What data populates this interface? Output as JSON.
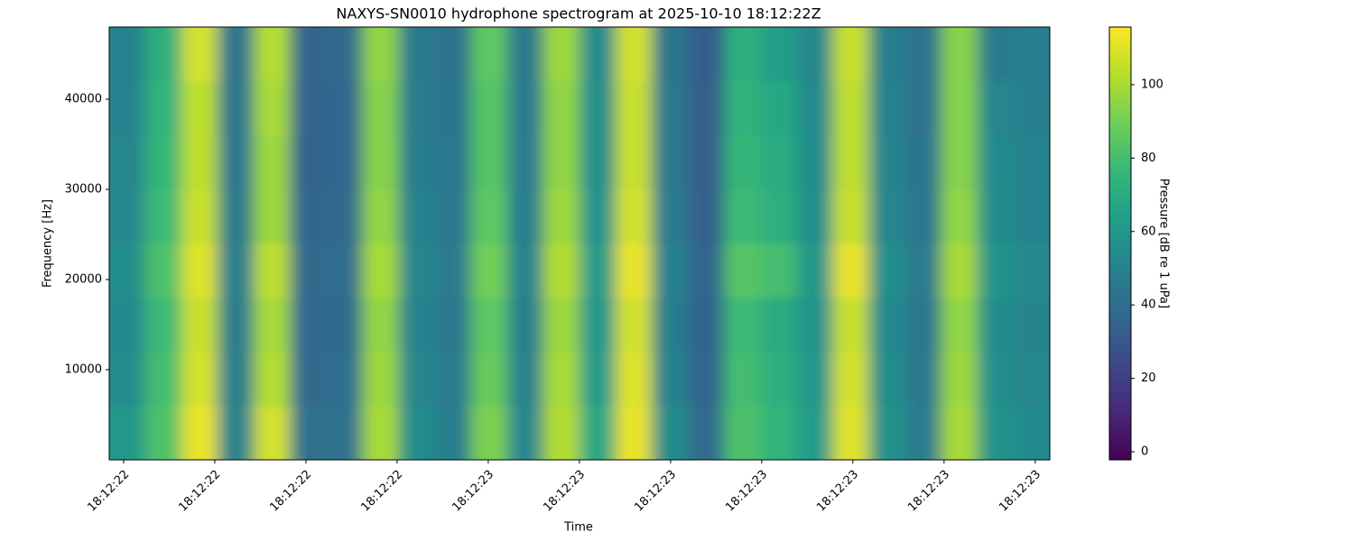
{
  "chart_data": {
    "type": "heatmap",
    "title": "NAXYS-SN0010 hydrophone spectrogram at 2025-10-10 18:12:22Z",
    "x_label": "Time",
    "y_label": "Frequency [Hz]",
    "colorbar_label": "Pressure [dB re 1 uPa]",
    "colormap": "viridis",
    "xlim": [
      -0.158,
      10.16
    ],
    "xticks": [
      {
        "value": 0,
        "label": "18:12:22"
      },
      {
        "value": 1,
        "label": "18:12:22"
      },
      {
        "value": 2,
        "label": "18:12:22"
      },
      {
        "value": 3,
        "label": "18:12:22"
      },
      {
        "value": 4,
        "label": "18:12:23"
      },
      {
        "value": 5,
        "label": "18:12:23"
      },
      {
        "value": 6,
        "label": "18:12:23"
      },
      {
        "value": 7,
        "label": "18:12:23"
      },
      {
        "value": 8,
        "label": "18:12:23"
      },
      {
        "value": 9,
        "label": "18:12:23"
      },
      {
        "value": 10,
        "label": "18:12:23"
      }
    ],
    "ylim": [
      0,
      48000
    ],
    "yticks": [
      10000,
      20000,
      30000,
      40000
    ],
    "clim": [
      -2.2,
      115.7
    ],
    "cticks": [
      0,
      20,
      40,
      60,
      80,
      100
    ],
    "z": [
      [
        60,
        82,
        112,
        50,
        108,
        42,
        42,
        100,
        55,
        48,
        92,
        52,
        102,
        68,
        112,
        55,
        38,
        82,
        75,
        62,
        110,
        58,
        47,
        100,
        58,
        54
      ],
      [
        55,
        80,
        108,
        48,
        102,
        38,
        40,
        98,
        52,
        46,
        88,
        50,
        100,
        62,
        110,
        50,
        36,
        80,
        72,
        60,
        108,
        55,
        45,
        98,
        56,
        52
      ],
      [
        54,
        78,
        106,
        47,
        100,
        37,
        39,
        96,
        50,
        45,
        86,
        49,
        98,
        60,
        108,
        48,
        35,
        78,
        70,
        58,
        106,
        54,
        44,
        96,
        55,
        51
      ],
      [
        56,
        82,
        110,
        48,
        104,
        38,
        40,
        100,
        52,
        46,
        90,
        50,
        102,
        62,
        112,
        50,
        36,
        84,
        80,
        60,
        112,
        56,
        46,
        100,
        58,
        53
      ],
      [
        53,
        78,
        106,
        46,
        98,
        36,
        38,
        96,
        50,
        44,
        86,
        48,
        98,
        58,
        108,
        46,
        34,
        78,
        72,
        56,
        106,
        52,
        44,
        96,
        55,
        50
      ],
      [
        52,
        76,
        104,
        45,
        98,
        35,
        37,
        94,
        48,
        44,
        84,
        47,
        96,
        56,
        106,
        45,
        33,
        76,
        70,
        55,
        104,
        51,
        43,
        94,
        54,
        50
      ],
      [
        50,
        74,
        104,
        44,
        100,
        35,
        37,
        94,
        47,
        43,
        84,
        46,
        96,
        56,
        106,
        45,
        33,
        74,
        68,
        54,
        104,
        50,
        42,
        94,
        52,
        49
      ],
      [
        50,
        72,
        108,
        44,
        102,
        36,
        38,
        96,
        46,
        42,
        86,
        45,
        98,
        55,
        108,
        44,
        32,
        72,
        64,
        52,
        106,
        48,
        42,
        94,
        46,
        48
      ]
    ]
  }
}
